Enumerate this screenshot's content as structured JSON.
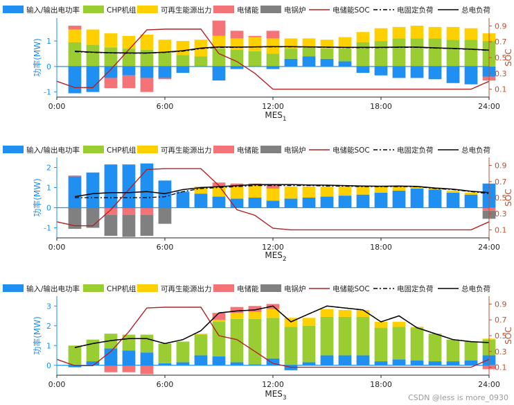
{
  "legend_items": [
    {
      "label": "输入/输出电功率",
      "kind": "rect",
      "color": "#1f8ff2"
    },
    {
      "label": "CHP机组",
      "kind": "rect",
      "color": "#9acd32"
    },
    {
      "label": "可再生能源出力",
      "kind": "rect",
      "color": "#ffd000"
    },
    {
      "label": "电储能",
      "kind": "rect",
      "color": "#f47376"
    },
    {
      "label": "电锅炉",
      "kind": "rect",
      "color": "#808080"
    },
    {
      "label": "电储能SOC",
      "kind": "line",
      "color": "#b22222",
      "dash": ""
    },
    {
      "label": "电固定负荷",
      "kind": "line",
      "color": "#000000",
      "dash": "6,3,2,3"
    },
    {
      "label": "总电负荷",
      "kind": "line",
      "color": "#000000",
      "dash": ""
    }
  ],
  "watermark": "CSDN @less is more_0930",
  "chart_data": [
    {
      "type": "bar",
      "title": "",
      "xlabel": "MES",
      "xlabel_sub": "1",
      "ylabel": "功率(MW)",
      "ylabel2": "SOC",
      "ylim": [
        -1.2,
        1.9
      ],
      "y2lim": [
        0.0,
        1.0
      ],
      "yticks": [
        -1,
        0,
        1
      ],
      "y2ticks": [
        0.1,
        0.3,
        0.5,
        0.7,
        0.9
      ],
      "y2ticklabels": [
        "0.1",
        "0.3",
        "0.5",
        "0.7",
        "0.9"
      ],
      "x_hours": [
        1,
        2,
        3,
        4,
        5,
        6,
        7,
        8,
        9,
        10,
        11,
        12,
        13,
        14,
        15,
        16,
        17,
        18,
        19,
        20,
        21,
        22,
        23,
        24
      ],
      "xticks": [
        0,
        6,
        12,
        18,
        24
      ],
      "xticklabels": [
        "0:00",
        "6:00",
        "12:00",
        "18:00",
        "24:00"
      ],
      "stacks": {
        "grid": [
          -1.05,
          -1.0,
          -0.45,
          -0.35,
          -0.45,
          -0.45,
          -0.25,
          0,
          -0.55,
          -0.1,
          0,
          -0.1,
          0.3,
          0.4,
          0.3,
          0.2,
          -0.25,
          -0.35,
          -0.45,
          -0.45,
          -0.5,
          -0.65,
          -0.7,
          -0.4
        ],
        "chp": [
          0.95,
          0.85,
          0.75,
          0.7,
          0.65,
          0.55,
          0.45,
          0.4,
          0.7,
          0.65,
          0.6,
          0.5,
          0.4,
          0.35,
          0.4,
          0.5,
          0.95,
          1.0,
          1.1,
          1.1,
          1.1,
          1.05,
          1.05,
          1.0
        ],
        "renew": [
          0.5,
          0.6,
          0.55,
          0.5,
          0.6,
          0.5,
          0.55,
          0.65,
          0.5,
          0.45,
          0.55,
          0.6,
          0.4,
          0.35,
          0.35,
          0.45,
          0.4,
          0.5,
          0.45,
          0.5,
          0.45,
          0.5,
          0.45,
          0.3
        ],
        "storage": [
          0.15,
          0,
          -0.4,
          -0.5,
          -0.55,
          -0.05,
          0,
          0,
          0.6,
          0.3,
          0.05,
          0.3,
          0,
          0,
          0,
          0,
          0,
          0,
          0,
          0,
          0,
          0,
          0,
          -0.15
        ],
        "boiler": [
          0,
          0,
          0,
          0,
          0,
          0,
          0,
          0,
          0,
          0,
          0,
          0,
          0,
          0,
          0,
          0,
          0,
          0,
          0,
          0,
          0,
          0,
          0,
          0
        ]
      },
      "soc_x": [
        0,
        1,
        2,
        3,
        4,
        5,
        6,
        7,
        8,
        9,
        10,
        11,
        12,
        13,
        14,
        15,
        16,
        17,
        18,
        19,
        20,
        21,
        22,
        23,
        24
      ],
      "soc": [
        0.2,
        0.12,
        0.12,
        0.35,
        0.6,
        0.85,
        0.86,
        0.86,
        0.86,
        0.55,
        0.45,
        0.3,
        0.1,
        0.1,
        0.1,
        0.1,
        0.1,
        0.1,
        0.1,
        0.1,
        0.1,
        0.1,
        0.1,
        0.1,
        0.2
      ],
      "fixed_load": [
        0.58,
        0.55,
        0.53,
        0.52,
        0.52,
        0.55,
        0.6,
        0.7,
        0.75,
        0.75,
        0.76,
        0.77,
        0.77,
        0.76,
        0.75,
        0.74,
        0.74,
        0.74,
        0.75,
        0.75,
        0.72,
        0.7,
        0.67,
        0.63
      ],
      "total_load": [
        0.6,
        0.56,
        0.54,
        0.53,
        0.53,
        0.56,
        0.62,
        0.72,
        0.77,
        0.76,
        0.77,
        0.78,
        0.78,
        0.77,
        0.76,
        0.75,
        0.75,
        0.75,
        0.76,
        0.76,
        0.73,
        0.71,
        0.68,
        0.64
      ]
    },
    {
      "type": "bar",
      "title": "",
      "xlabel": "MES",
      "xlabel_sub": "2",
      "ylabel": "功率(MW)",
      "ylabel2": "SOC",
      "ylim": [
        -1.5,
        2.5
      ],
      "y2lim": [
        0.0,
        1.0
      ],
      "yticks": [
        -1,
        0,
        1,
        2
      ],
      "y2ticks": [
        0.1,
        0.3,
        0.5,
        0.7,
        0.9
      ],
      "y2ticklabels": [
        "0.1",
        "0.3",
        "0.5",
        "0.7",
        "0.9"
      ],
      "x_hours": [
        1,
        2,
        3,
        4,
        5,
        6,
        7,
        8,
        9,
        10,
        11,
        12,
        13,
        14,
        15,
        16,
        17,
        18,
        19,
        20,
        21,
        22,
        23,
        24
      ],
      "xticks": [
        0,
        6,
        12,
        18,
        24
      ],
      "xticklabels": [
        "0:00",
        "6:00",
        "12:00",
        "18:00",
        "24:00"
      ],
      "stacks": {
        "grid": [
          1.55,
          1.75,
          2.15,
          2.15,
          2.2,
          1.35,
          0.8,
          0.7,
          0.55,
          0.45,
          0.5,
          0.35,
          0.45,
          0.5,
          0.55,
          0.6,
          0.65,
          0.75,
          0.85,
          0.95,
          0.9,
          0.75,
          0.65,
          1.2
        ],
        "chp": [
          0,
          0,
          0,
          0,
          0,
          0,
          0,
          0,
          0,
          0,
          0,
          0,
          0,
          0,
          0,
          0,
          0,
          0,
          0,
          0,
          0,
          0,
          0,
          0
        ],
        "renew": [
          0,
          0,
          0,
          0,
          0,
          0,
          0,
          0.35,
          0.5,
          0.6,
          0.6,
          0.6,
          0.6,
          0.55,
          0.5,
          0.45,
          0.4,
          0.3,
          0.2,
          0.1,
          0.1,
          0.1,
          0.1,
          0
        ],
        "storage": [
          0.05,
          0,
          -0.35,
          -0.35,
          -0.35,
          0,
          0,
          0,
          0.2,
          0.15,
          0.1,
          0.2,
          0,
          0,
          0,
          0,
          0,
          0,
          0,
          0,
          0,
          0,
          0,
          -0.15
        ],
        "boiler": [
          -1.05,
          -1.0,
          -1.05,
          -1.1,
          -1.05,
          -0.8,
          0,
          0,
          0,
          0,
          0,
          0,
          0,
          0,
          0,
          0,
          0,
          0,
          0,
          0,
          0,
          0,
          0,
          -0.4
        ]
      },
      "soc_x": [
        0,
        1,
        2,
        3,
        4,
        5,
        6,
        7,
        8,
        9,
        10,
        11,
        12,
        13,
        14,
        15,
        16,
        17,
        18,
        19,
        20,
        21,
        22,
        23,
        24
      ],
      "soc": [
        0.2,
        0.15,
        0.15,
        0.35,
        0.6,
        0.85,
        0.86,
        0.86,
        0.86,
        0.65,
        0.35,
        0.28,
        0.12,
        0.1,
        0.1,
        0.1,
        0.1,
        0.1,
        0.1,
        0.1,
        0.1,
        0.1,
        0.1,
        0.1,
        0.2
      ],
      "fixed_load": [
        0.5,
        0.5,
        0.5,
        0.5,
        0.5,
        0.55,
        0.8,
        0.95,
        1.0,
        1.05,
        1.1,
        1.1,
        1.1,
        1.1,
        1.08,
        1.07,
        1.05,
        1.05,
        1.05,
        1.05,
        0.95,
        0.9,
        0.8,
        0.7
      ],
      "total_load": [
        0.55,
        0.7,
        0.75,
        0.75,
        0.8,
        0.7,
        0.9,
        1.0,
        1.05,
        1.1,
        1.15,
        1.15,
        1.15,
        1.13,
        1.12,
        1.1,
        1.08,
        1.07,
        1.08,
        1.06,
        0.98,
        0.92,
        0.82,
        0.75
      ]
    },
    {
      "type": "bar",
      "title": "",
      "xlabel": "MES",
      "xlabel_sub": "3",
      "ylabel": "功率(MW)",
      "ylabel2": "SOC",
      "ylim": [
        -0.5,
        3.5
      ],
      "y2lim": [
        0.0,
        1.0
      ],
      "yticks": [
        0,
        1,
        2,
        3
      ],
      "y2ticks": [
        0.1,
        0.3,
        0.5,
        0.7,
        0.9
      ],
      "y2ticklabels": [
        "0.1",
        "0.3",
        "0.5",
        "0.7",
        "0.9"
      ],
      "x_hours": [
        1,
        2,
        3,
        4,
        5,
        6,
        7,
        8,
        9,
        10,
        11,
        12,
        13,
        14,
        15,
        16,
        17,
        18,
        19,
        20,
        21,
        22,
        23,
        24
      ],
      "xticks": [
        0,
        6,
        12,
        18,
        24
      ],
      "xticklabels": [
        "0:00",
        "6:00",
        "12:00",
        "18:00",
        "24:00"
      ],
      "stacks": {
        "grid": [
          -0.1,
          0.2,
          0.85,
          0.75,
          0.65,
          0.1,
          0.15,
          0.5,
          0.45,
          0.15,
          0.05,
          0.35,
          -0.25,
          0.15,
          0.5,
          0.5,
          0.5,
          0.2,
          0.3,
          0.25,
          0.2,
          0.2,
          0.25,
          0.5
        ],
        "chp": [
          1.0,
          1.1,
          0.75,
          0.8,
          0.9,
          1.0,
          1.05,
          1.05,
          1.75,
          2.2,
          2.3,
          2.05,
          1.95,
          1.85,
          1.95,
          1.95,
          1.95,
          1.7,
          1.65,
          1.65,
          1.4,
          1.1,
          0.95,
          0.8
        ],
        "renew": [
          0,
          0,
          0,
          0,
          0,
          0,
          0,
          0.05,
          0.1,
          0.3,
          0.35,
          0.45,
          0.45,
          0.4,
          0.4,
          0.35,
          0.35,
          0.3,
          0.25,
          0.05,
          0,
          0,
          0,
          0.05
        ],
        "storage": [
          0,
          0,
          -0.35,
          -0.35,
          -0.45,
          0,
          0,
          0,
          0.35,
          0.3,
          0.3,
          0.25,
          0,
          0,
          0,
          0,
          0,
          0,
          0,
          0,
          0,
          0,
          0,
          -0.2
        ],
        "boiler": [
          0,
          0,
          0,
          0,
          0,
          0,
          0,
          0,
          0,
          0,
          0,
          0,
          0,
          0,
          0,
          0,
          0,
          0,
          0,
          0,
          0,
          0,
          0,
          0
        ]
      },
      "soc_x": [
        0,
        1,
        2,
        3,
        4,
        5,
        6,
        7,
        8,
        9,
        10,
        11,
        12,
        13,
        14,
        15,
        16,
        17,
        18,
        19,
        20,
        21,
        22,
        23,
        24
      ],
      "soc": [
        0.2,
        0.12,
        0.12,
        0.3,
        0.55,
        0.85,
        0.86,
        0.86,
        0.86,
        0.5,
        0.45,
        0.3,
        0.15,
        0.1,
        0.1,
        0.1,
        0.1,
        0.1,
        0.1,
        0.1,
        0.1,
        0.1,
        0.1,
        0.1,
        0.2
      ],
      "fixed_load": [
        0.9,
        1.1,
        1.25,
        1.35,
        1.35,
        1.1,
        1.3,
        1.75,
        2.65,
        2.75,
        2.8,
        3.0,
        2.2,
        2.6,
        3.0,
        2.9,
        2.8,
        2.2,
        2.5,
        1.9,
        1.6,
        1.3,
        1.2,
        1.15
      ],
      "total_load": [
        0.9,
        1.1,
        1.25,
        1.35,
        1.35,
        1.1,
        1.3,
        1.75,
        2.65,
        2.75,
        2.8,
        3.0,
        2.2,
        2.6,
        3.0,
        2.9,
        2.8,
        2.2,
        2.5,
        1.9,
        1.6,
        1.3,
        1.2,
        1.15
      ]
    }
  ]
}
